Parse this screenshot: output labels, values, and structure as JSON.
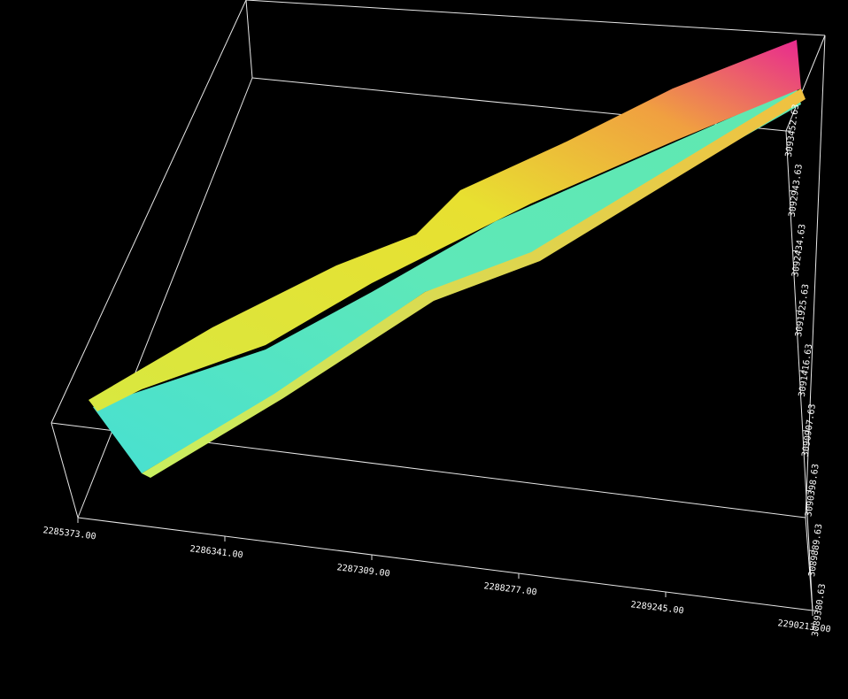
{
  "x_axis_labels": [
    "2285373.00",
    "2286341.00",
    "2287309.00",
    "2288277.00",
    "2289245.00",
    "2290213.00"
  ],
  "y_axis_labels": [
    "3089380.63",
    "3089889.63",
    "3090398.63",
    "3090907.63",
    "3091416.63",
    "3091925.63",
    "3092434.63",
    "3092943.63",
    "3093452.63"
  ]
}
